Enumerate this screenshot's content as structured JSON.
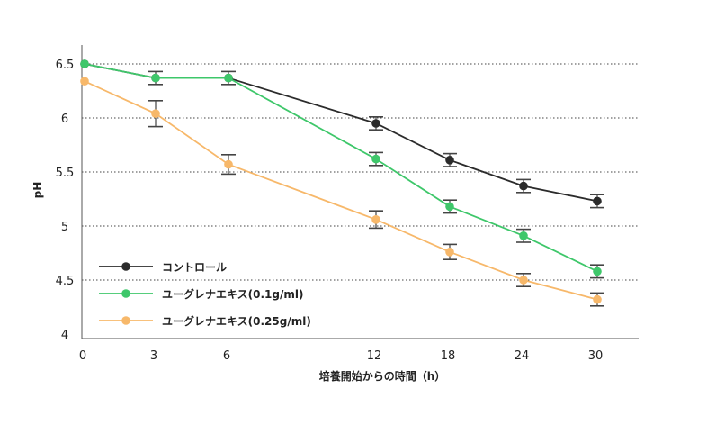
{
  "chart_data": {
    "type": "line",
    "x": [
      0,
      3,
      6,
      12,
      18,
      24,
      30
    ],
    "x_ticks": [
      "0",
      "3",
      "6",
      "12",
      "18",
      "24",
      "30"
    ],
    "y_ticks": [
      "4",
      "4.5",
      "5",
      "5.5",
      "6",
      "6.5"
    ],
    "ylim": [
      4,
      6.65
    ],
    "xlabel": "培養開始からの時間（h）",
    "ylabel": "pH",
    "grid": "horizontal dotted",
    "legend_position": "bottom-left",
    "series": [
      {
        "name": "コントロール",
        "color": "#2b2b2b",
        "values": [
          6.5,
          6.37,
          6.37,
          5.95,
          5.61,
          5.37,
          5.23
        ],
        "errors": [
          0.0,
          0.06,
          0.06,
          0.06,
          0.06,
          0.06,
          0.06
        ]
      },
      {
        "name": "ユーグレナエキス(0.1g/ml)",
        "color": "#3ec76a",
        "values": [
          6.5,
          6.37,
          6.37,
          5.62,
          5.18,
          4.91,
          4.58
        ],
        "errors": [
          0.0,
          0.0,
          0.0,
          0.06,
          0.06,
          0.06,
          0.06
        ]
      },
      {
        "name": "ユーグレナエキス(0.25g/ml)",
        "color": "#f7b86a",
        "values": [
          6.34,
          6.04,
          5.57,
          5.06,
          4.76,
          4.5,
          4.32
        ],
        "errors": [
          0.0,
          0.12,
          0.09,
          0.08,
          0.07,
          0.06,
          0.06
        ]
      }
    ]
  }
}
